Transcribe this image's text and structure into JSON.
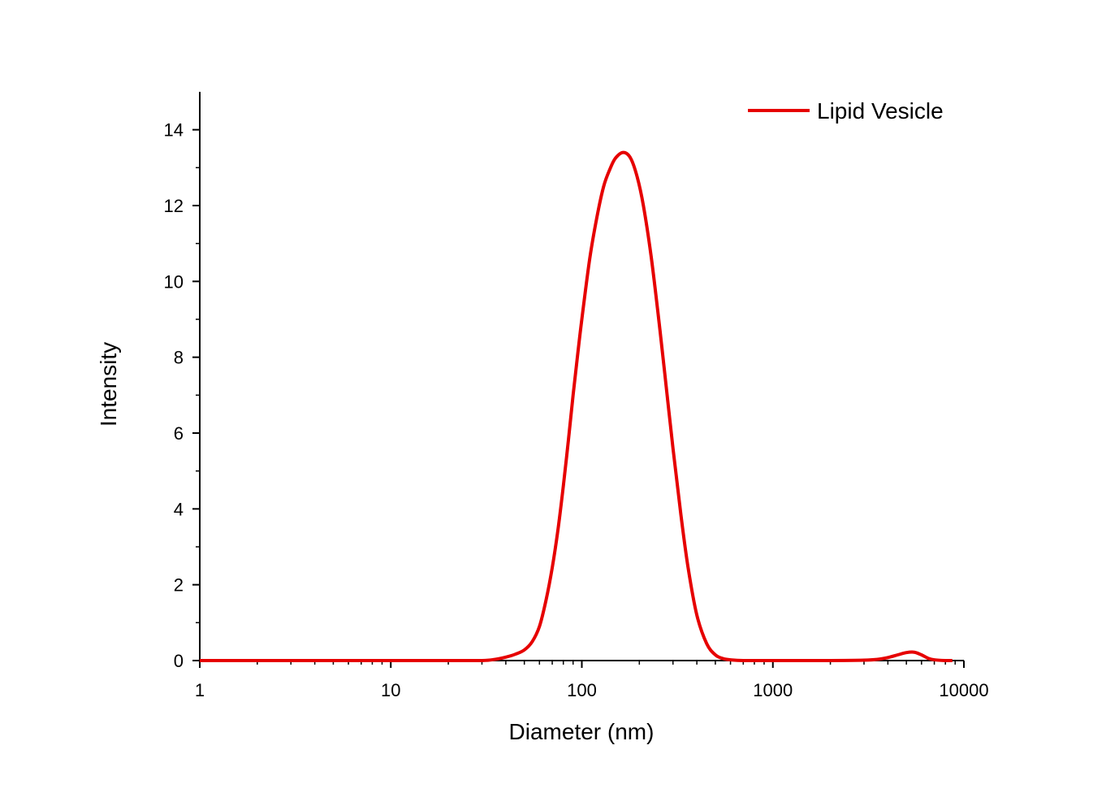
{
  "chart_data": {
    "type": "line",
    "xlabel": "Diameter (nm)",
    "ylabel": "Intensity",
    "x_scale": "log",
    "xlim": [
      1,
      10000
    ],
    "ylim": [
      0,
      15
    ],
    "x_ticks": [
      "1",
      "10",
      "100",
      "1000",
      "10000"
    ],
    "y_ticks": [
      "0",
      "2",
      "4",
      "6",
      "8",
      "10",
      "12",
      "14"
    ],
    "grid": false,
    "legend_position": "top-right",
    "series": [
      {
        "name": "Lipid Vesicle",
        "color": "#e60000",
        "x": [
          1,
          5,
          10,
          20,
          30,
          35,
          40,
          45,
          50,
          55,
          60,
          65,
          70,
          75,
          80,
          85,
          90,
          95,
          100,
          110,
          120,
          130,
          140,
          150,
          165,
          180,
          195,
          210,
          230,
          250,
          270,
          300,
          330,
          360,
          400,
          450,
          500,
          550,
          600,
          700,
          1000,
          2000,
          3000,
          3500,
          4000,
          4500,
          5000,
          5500,
          6000,
          6500,
          7000,
          8000,
          8700
        ],
        "y": [
          0,
          0,
          0,
          0,
          0,
          0.03,
          0.09,
          0.17,
          0.28,
          0.5,
          0.9,
          1.6,
          2.45,
          3.45,
          4.6,
          5.8,
          7.0,
          8.05,
          9.0,
          10.6,
          11.7,
          12.5,
          12.95,
          13.25,
          13.4,
          13.25,
          12.75,
          12.0,
          10.7,
          9.2,
          7.7,
          5.6,
          3.85,
          2.45,
          1.2,
          0.45,
          0.15,
          0.05,
          0.02,
          0,
          0,
          0,
          0.01,
          0.03,
          0.08,
          0.15,
          0.21,
          0.22,
          0.15,
          0.06,
          0.02,
          0,
          0
        ]
      }
    ]
  }
}
